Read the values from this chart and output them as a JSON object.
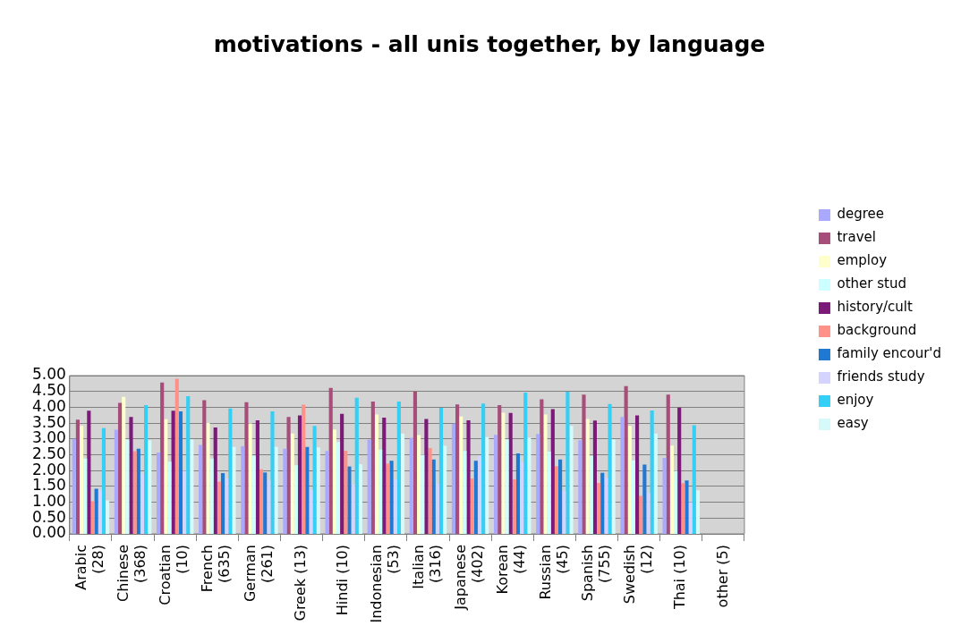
{
  "chart_data": {
    "type": "bar",
    "title": "motivations - all unis together, by language",
    "categories": [
      "Arabic (28)",
      "Chinese (368)",
      "Croatian (10)",
      "French (635)",
      "German (261)",
      "Greek (13)",
      "Hindi (10)",
      "Indonesian (53)",
      "Italian (316)",
      "Japanese (402)",
      "Korean (44)",
      "Russian (45)",
      "Spanish (755)",
      "Swedish (12)",
      "Thai (10)",
      "other (5)"
    ],
    "series": [
      {
        "name": "degree",
        "color": "#a9a9ff",
        "values": [
          3.0,
          3.29,
          2.57,
          2.81,
          2.77,
          2.69,
          2.62,
          2.98,
          3.04,
          3.48,
          3.13,
          3.16,
          2.96,
          3.69,
          2.4,
          null
        ]
      },
      {
        "name": "travel",
        "color": "#a64d79",
        "values": [
          3.61,
          4.14,
          4.78,
          4.22,
          4.16,
          3.69,
          4.61,
          4.18,
          4.5,
          4.09,
          4.07,
          4.25,
          4.4,
          4.67,
          4.4,
          null
        ]
      },
      {
        "name": "employ",
        "color": "#ffffcc",
        "values": [
          3.41,
          4.33,
          3.62,
          3.5,
          3.49,
          3.17,
          3.3,
          3.77,
          3.12,
          3.71,
          3.83,
          3.77,
          3.63,
          3.41,
          2.79,
          null
        ]
      },
      {
        "name": "other stud",
        "color": "#ccffff",
        "values": [
          2.38,
          2.99,
          2.28,
          2.38,
          2.47,
          2.17,
          2.9,
          2.66,
          2.5,
          2.62,
          2.99,
          2.6,
          2.46,
          2.32,
          1.99,
          null
        ]
      },
      {
        "name": "history/cult",
        "color": "#7b1a78",
        "values": [
          3.89,
          3.69,
          3.89,
          3.36,
          3.59,
          3.74,
          3.79,
          3.67,
          3.63,
          3.59,
          3.82,
          3.94,
          3.58,
          3.74,
          3.99,
          null
        ]
      },
      {
        "name": "background",
        "color": "#ff9188",
        "values": [
          1.03,
          2.61,
          4.9,
          1.65,
          2.04,
          4.08,
          2.63,
          2.22,
          2.71,
          1.75,
          1.72,
          2.14,
          1.61,
          1.2,
          1.6,
          null
        ]
      },
      {
        "name": "family encour'd",
        "color": "#1f78d1",
        "values": [
          1.43,
          2.69,
          3.87,
          1.92,
          1.94,
          2.75,
          2.13,
          2.31,
          2.35,
          2.31,
          2.54,
          2.35,
          1.93,
          2.19,
          1.69,
          null
        ]
      },
      {
        "name": "friends study",
        "color": "#d4d4ff",
        "values": [
          1.38,
          1.9,
          1.99,
          1.76,
          1.7,
          1.39,
          1.56,
          1.72,
          1.58,
          2.48,
          2.26,
          1.35,
          1.78,
          1.3,
          1.0,
          null
        ]
      },
      {
        "name": "enjoy",
        "color": "#33cff5",
        "values": [
          3.34,
          4.07,
          4.35,
          3.96,
          3.87,
          3.41,
          4.3,
          4.18,
          3.98,
          4.12,
          4.46,
          4.49,
          4.1,
          3.9,
          3.43,
          null
        ]
      },
      {
        "name": "easy",
        "color": "#d6fafa",
        "values": [
          1.06,
          2.96,
          2.99,
          2.75,
          2.75,
          2.73,
          2.2,
          3.17,
          2.78,
          3.06,
          3.04,
          3.41,
          2.99,
          3.17,
          1.38,
          null
        ]
      }
    ],
    "ylim": [
      0,
      5
    ],
    "yticks": [
      {
        "value": 0,
        "label": "0.00"
      },
      {
        "value": 0.5,
        "label": "0.50"
      },
      {
        "value": 1,
        "label": "1.00"
      },
      {
        "value": 1.5,
        "label": "1.50"
      },
      {
        "value": 2,
        "label": "2.00"
      },
      {
        "value": 2.5,
        "label": "2.50"
      },
      {
        "value": 3,
        "label": "3.00"
      },
      {
        "value": 3.5,
        "label": "3.50"
      },
      {
        "value": 4,
        "label": "4.00"
      },
      {
        "value": 4.5,
        "label": "4.50"
      },
      {
        "value": 5,
        "label": "5.00"
      }
    ],
    "grid": "y",
    "legend": "right"
  }
}
